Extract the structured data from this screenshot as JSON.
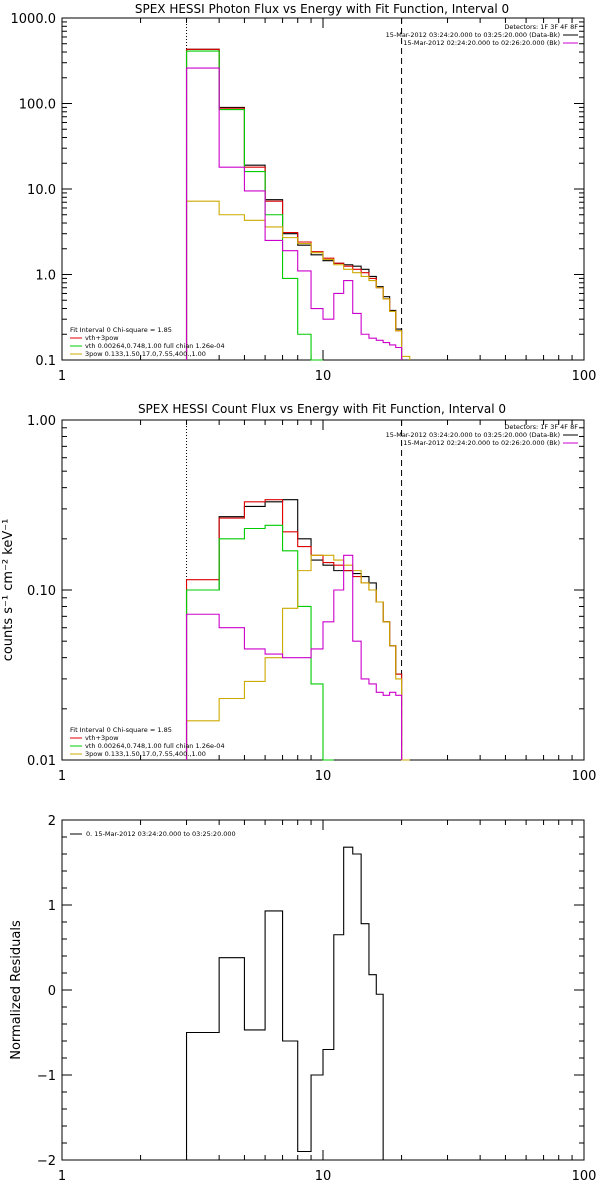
{
  "chart_data": [
    {
      "type": "line",
      "title": "SPEX HESSI Photon Flux vs Energy with Fit Function, Interval 0",
      "ylabel": "",
      "xscale": "log",
      "yscale": "log",
      "xlim": [
        1,
        100
      ],
      "ylim": [
        0.1,
        1000
      ],
      "xtick_labels": [
        "1",
        "10",
        "100"
      ],
      "ytick_labels": [
        "0.1",
        "1.0",
        "10.0",
        "100.0",
        "1000.0"
      ],
      "ytick_values": [
        0.1,
        1,
        10,
        100,
        1000
      ],
      "vlines": [
        {
          "x": 3,
          "style": "dotted"
        },
        {
          "x": 20,
          "style": "dashed"
        }
      ],
      "legend_top_right": {
        "detectors": "Detectors: 1F 3F 4F 8F",
        "entries": [
          {
            "label": "15-Mar-2012 03:24:20.000 to 03:25:20.000 (Data-Bk)",
            "color": "#000000"
          },
          {
            "label": "15-Mar-2012 02:24:20.000 to 02:26:20.000 (Bk)",
            "color": "#cc00cc"
          }
        ]
      },
      "legend_bottom_left": {
        "header": "Fit Interval 0   Chi-square = 1.85",
        "entries": [
          {
            "label": "vth+3pow",
            "color": "#dd0000"
          },
          {
            "label": "vth 0.00264,0.748,1.00  full chian 1.26e-04",
            "color": "#00cc00"
          },
          {
            "label": "3pow 0.133,1.50,17.0,7.55,400.,1.00",
            "color": "#ccaa00"
          }
        ]
      },
      "edges": [
        3,
        4,
        5,
        6,
        7,
        8,
        9,
        10,
        11,
        12,
        13,
        14,
        15,
        16,
        17,
        18,
        19,
        20,
        21.5
      ],
      "series": [
        {
          "color": "#000000",
          "values": [
            430,
            90,
            19,
            7.5,
            3.0,
            2.2,
            1.7,
            1.45,
            1.35,
            1.3,
            1.25,
            1.15,
            0.95,
            0.72,
            0.55,
            0.38,
            0.23,
            null
          ]
        },
        {
          "color": "#dd0000",
          "values": [
            430,
            88,
            18,
            7.2,
            3.1,
            2.4,
            1.85,
            1.55,
            1.35,
            1.25,
            1.15,
            1.05,
            0.9,
            0.7,
            0.52,
            0.37,
            0.22,
            null
          ]
        },
        {
          "color": "#00cc00",
          "values": [
            410,
            85,
            16,
            5.0,
            0.9,
            0.2,
            0.1,
            null,
            null,
            null,
            null,
            null,
            null,
            null,
            null,
            null,
            null,
            null
          ]
        },
        {
          "color": "#ccaa00",
          "values": [
            7.2,
            5.0,
            4.3,
            3.6,
            2.7,
            2.3,
            1.8,
            1.5,
            1.3,
            1.15,
            1.05,
            0.95,
            0.85,
            0.7,
            0.52,
            0.37,
            0.22,
            0.11
          ]
        },
        {
          "color": "#cc00cc",
          "values": [
            260,
            18,
            9.5,
            2.5,
            1.9,
            1.1,
            0.4,
            0.3,
            0.6,
            0.85,
            0.35,
            0.2,
            0.18,
            0.17,
            0.16,
            0.15,
            0.14,
            null
          ]
        }
      ]
    },
    {
      "type": "line",
      "title": "SPEX HESSI Count Flux vs Energy with Fit Function, Interval 0",
      "ylabel": "counts s⁻¹ cm⁻² keV⁻¹",
      "xscale": "log",
      "yscale": "log",
      "xlim": [
        1,
        100
      ],
      "ylim": [
        0.01,
        1
      ],
      "xtick_labels": [
        "1",
        "10",
        "100"
      ],
      "ytick_labels": [
        "0.01",
        "0.10",
        "1.00"
      ],
      "ytick_values": [
        0.01,
        0.1,
        1
      ],
      "vlines": [
        {
          "x": 3,
          "style": "dotted"
        },
        {
          "x": 20,
          "style": "dashed"
        }
      ],
      "legend_top_right": {
        "detectors": "Detectors: 1F 3F 4F 8F",
        "entries": [
          {
            "label": "15-Mar-2012 03:24:20.000 to 03:25:20.000 (Data-Bk)",
            "color": "#000000"
          },
          {
            "label": "15-Mar-2012 02:24:20.000 to 02:26:20.000 (Bk)",
            "color": "#cc00cc"
          }
        ]
      },
      "legend_bottom_left": {
        "header": "Fit Interval 0   Chi-square = 1.85",
        "entries": [
          {
            "label": "vth+3pow",
            "color": "#dd0000"
          },
          {
            "label": "vth 0.00264,0.748,1.00  full chian 1.26e-04",
            "color": "#00cc00"
          },
          {
            "label": "3pow 0.133,1.50,17.0,7.55,400.,1.00",
            "color": "#ccaa00"
          }
        ]
      },
      "edges": [
        3,
        4,
        5,
        6,
        7,
        8,
        9,
        10,
        11,
        12,
        13,
        14,
        15,
        16,
        17,
        18,
        19,
        20,
        21.5
      ],
      "series": [
        {
          "color": "#000000",
          "values": [
            0.1,
            0.27,
            0.31,
            0.33,
            0.34,
            0.2,
            0.15,
            0.14,
            0.13,
            0.13,
            0.125,
            0.12,
            0.11,
            0.085,
            0.065,
            0.047,
            0.032,
            null
          ]
        },
        {
          "color": "#dd0000",
          "values": [
            0.115,
            0.265,
            0.33,
            0.34,
            0.22,
            0.18,
            0.16,
            0.145,
            0.14,
            0.13,
            0.12,
            0.11,
            0.1,
            0.085,
            0.065,
            0.047,
            0.032,
            null
          ]
        },
        {
          "color": "#00cc00",
          "values": [
            0.1,
            0.2,
            0.23,
            0.24,
            0.17,
            0.08,
            0.028,
            0.009,
            null,
            null,
            null,
            null,
            null,
            null,
            null,
            null,
            null,
            null
          ]
        },
        {
          "color": "#ccaa00",
          "values": [
            0.017,
            0.023,
            0.029,
            0.04,
            0.078,
            0.13,
            0.16,
            0.16,
            0.15,
            0.14,
            0.13,
            0.11,
            0.1,
            0.085,
            0.065,
            0.047,
            0.03,
            0.009
          ]
        },
        {
          "color": "#cc00cc",
          "values": [
            0.072,
            0.06,
            0.045,
            0.042,
            0.04,
            0.04,
            0.045,
            0.065,
            0.1,
            0.16,
            0.05,
            0.03,
            0.028,
            0.025,
            0.024,
            0.025,
            0.024,
            null
          ]
        }
      ]
    },
    {
      "type": "line",
      "title": "",
      "ylabel": "Normalized Residuals",
      "xscale": "log",
      "yscale": "linear",
      "xlim": [
        1,
        100
      ],
      "ylim": [
        -2,
        2
      ],
      "xtick_labels": [
        "1",
        "10",
        "100"
      ],
      "ytick_labels": [
        "−2",
        "−1",
        "0",
        "1",
        "2"
      ],
      "ytick_values": [
        -2,
        -1,
        0,
        1,
        2
      ],
      "legend_top_left": {
        "entries": [
          {
            "label": "0. 15-Mar-2012 03:24:20.000 to 03:25:20.000",
            "color": "#000000"
          }
        ]
      },
      "edges": [
        3,
        4,
        5,
        6,
        7,
        8,
        9,
        10,
        11,
        12,
        13,
        14,
        15,
        16,
        17,
        18,
        19,
        20
      ],
      "series": [
        {
          "color": "#000000",
          "values": [
            -0.5,
            0.38,
            -0.47,
            0.93,
            -0.6,
            -1.9,
            -1.0,
            -0.7,
            0.65,
            1.68,
            1.6,
            0.78,
            0.18,
            -0.05,
            null,
            null,
            null
          ]
        }
      ]
    }
  ]
}
